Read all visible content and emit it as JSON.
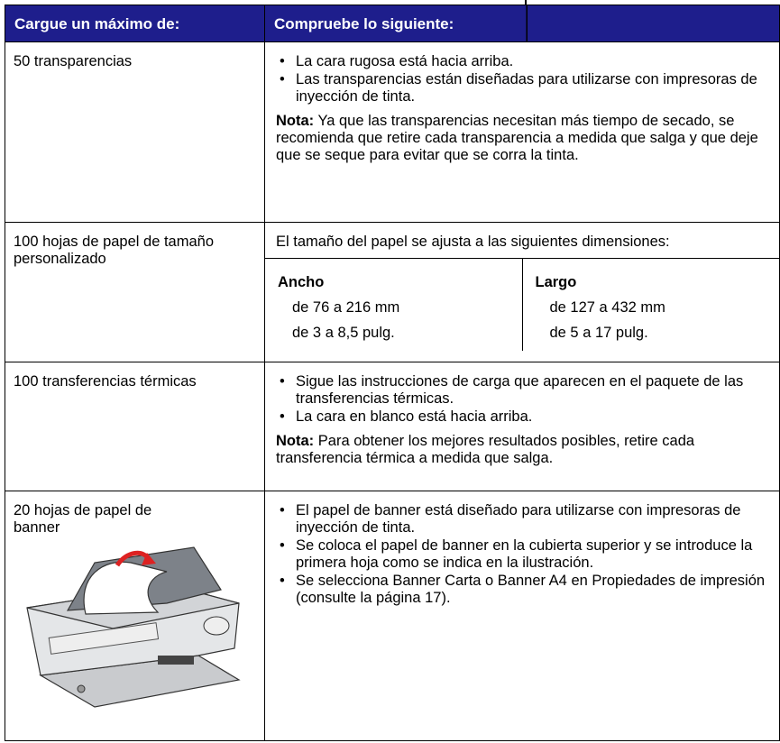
{
  "table": {
    "headers": [
      "Cargue un máximo de:",
      "Compruebe lo siguiente:"
    ],
    "rows": [
      {
        "label": "50 transparencias",
        "bullets": [
          "La cara rugosa está hacia arriba.",
          "Las transparencias están diseñadas para utilizarse con impresoras de inyección de tinta."
        ],
        "note": {
          "label": "Nota:",
          "text": "Ya que las transparencias necesitan más tiempo de secado, se recomienda que retire cada transparencia a medida que salga y que deje que se seque para evitar que se corra la tinta."
        }
      },
      {
        "label": "100 hojas de papel de tamaño personalizado",
        "text": "El tamaño del papel se ajusta a las siguientes dimensiones:",
        "dimensions": [
          {
            "heading": "Ancho",
            "values": [
              "de 76 a 216 mm",
              "de 3 a 8,5 pulg."
            ]
          },
          {
            "heading": "Largo",
            "values": [
              "de 127 a 432 mm",
              "de 5 a 17 pulg."
            ]
          }
        ]
      },
      {
        "label": "100 transferencias térmicas",
        "bullets": [
          "Sigue las instrucciones de carga que aparecen en el paquete de las transferencias térmicas.",
          "La cara en blanco está hacia arriba."
        ],
        "note": {
          "label": "Nota:",
          "text": "Para obtener los mejores resultados posibles, retire cada transferencia térmica a medida que salga."
        }
      },
      {
        "label": "20 hojas de papel de banner",
        "bullets": [
          "El papel de banner está diseñado para utilizarse con impresoras de inyección de tinta.",
          "Se coloca el papel de banner en la cubierta superior y se introduce la primera hoja como se indica en la ilustración.",
          "Se selecciona Banner Carta o Banner A4 en Propiedades de impresión (consulte la página 17)."
        ]
      }
    ]
  }
}
